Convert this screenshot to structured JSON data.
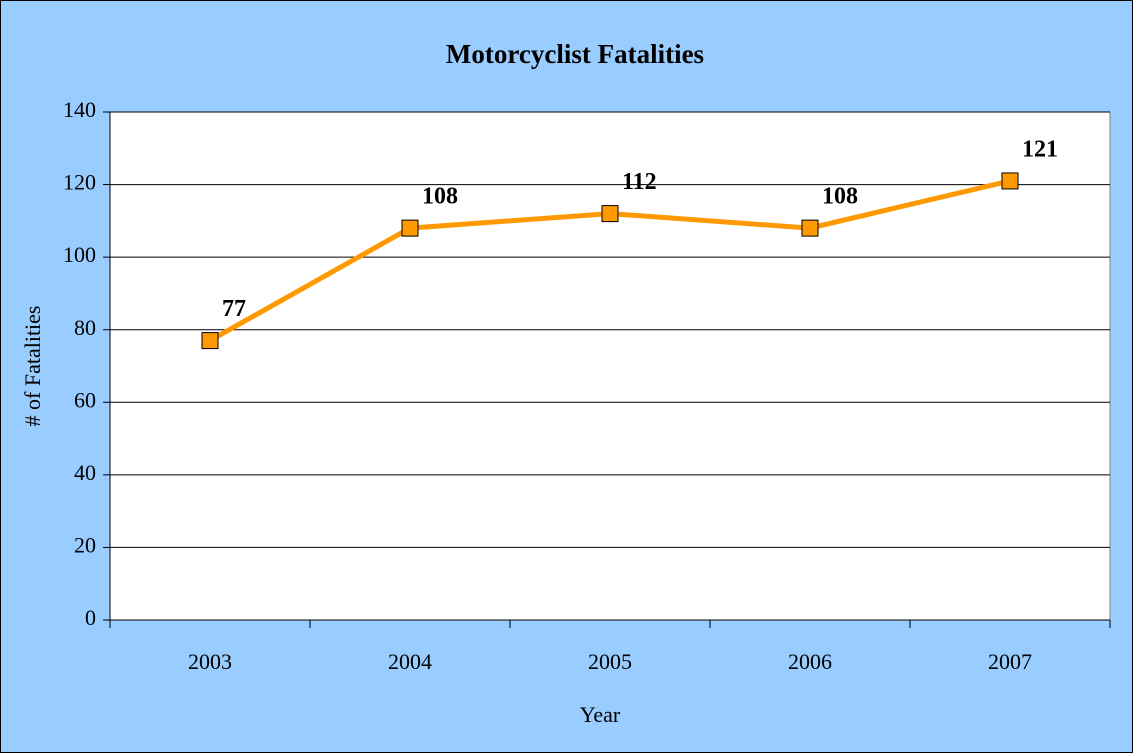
{
  "chart_data": {
    "type": "line",
    "title": "Motorcyclist Fatalities",
    "x_label": "Year",
    "y_label": "# of Fatalities",
    "categories": [
      "2003",
      "2004",
      "2005",
      "2006",
      "2007"
    ],
    "values": [
      77,
      108,
      112,
      108,
      121
    ],
    "color": "#FF9900",
    "ylim": [
      0,
      140
    ],
    "yticks": [
      0,
      20,
      40,
      60,
      80,
      100,
      120,
      140
    ],
    "grid": true
  }
}
